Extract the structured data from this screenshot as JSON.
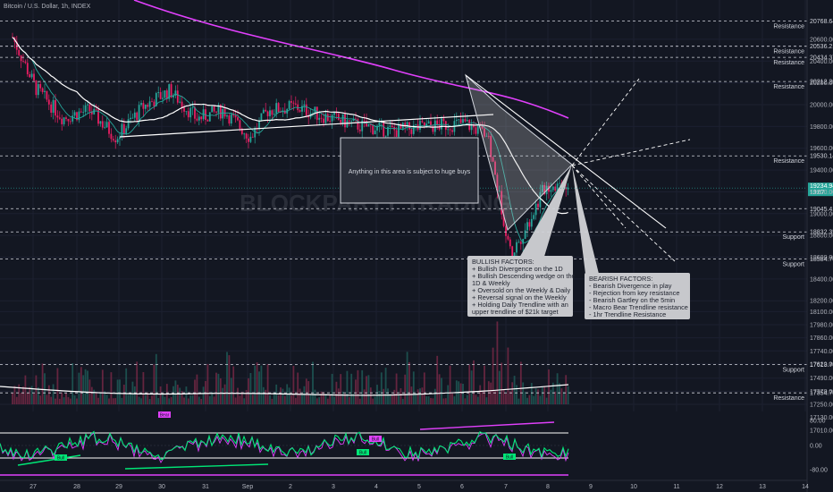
{
  "symbol": {
    "title": "Bitcoin / U.S. Dollar, 1h, INDEX"
  },
  "watermark": "BLOCKPARTY TRADING",
  "colors": {
    "background": "#131722",
    "up": "#26a69a",
    "down": "#e91e63",
    "ma_long": "#e040fb",
    "ma_mid": "#ffffff",
    "ma_fast": "#26a69a",
    "note_fill": "#c7c8cc",
    "osc_line": "#00e676",
    "osc_signal": "#e040fb"
  },
  "chart_data": {
    "type": "candlestick",
    "title": "Bitcoin / U.S. Dollar, 1h, INDEX",
    "x_ticks": [
      "27",
      "28",
      "29",
      "30",
      "31",
      "Sep",
      "2",
      "3",
      "4",
      "5",
      "6",
      "7",
      "8",
      "9",
      "10",
      "11",
      "12",
      "13",
      "14"
    ],
    "price_ticks": [
      20600,
      20400,
      20200,
      20000,
      19800,
      19600,
      19400,
      19200,
      19000,
      18800,
      18600,
      18400,
      18200,
      18100,
      17980,
      17860,
      17740,
      17620,
      17490,
      17370,
      17250,
      17130,
      17010
    ],
    "price_tick_labels": [
      "20600.00",
      "20400.00",
      "20200.00",
      "20000.00",
      "19800.00",
      "19600.00",
      "19400.00",
      "19200.00",
      "19000.00",
      "18800.00",
      "18600.00",
      "18400.00",
      "18200.00",
      "18100.00",
      "17980.00",
      "17860.00",
      "17740.00",
      "17620.00",
      "17490.00",
      "17370.00",
      "17250.00",
      "17130.00",
      "17010.00"
    ],
    "current_price": "19234.94",
    "current_time": "13:07",
    "levels": [
      {
        "value": 20768.64,
        "label": "20768.64",
        "name": "Resistance"
      },
      {
        "value": 20536.21,
        "label": "20536.21",
        "name": "Resistance"
      },
      {
        "value": 20434.37,
        "label": "20434.37",
        "name": "Resistance"
      },
      {
        "value": 20212.2,
        "label": "20212.20",
        "name": "Resistance"
      },
      {
        "value": 19530.14,
        "label": "19530.14",
        "name": "Resistance"
      },
      {
        "value": 19045.41,
        "label": "19045.41",
        "name": ""
      },
      {
        "value": 18832.35,
        "label": "18832.35",
        "name": "Support"
      },
      {
        "value": 18584.7,
        "label": "18584.70",
        "name": "Support"
      },
      {
        "value": 17613.7,
        "label": "17613.70",
        "name": "Support"
      },
      {
        "value": 17354.7,
        "label": "17354.70",
        "name": "Resistance"
      }
    ],
    "oscillator_ticks": [
      "80.00",
      "0.00",
      "-80.00"
    ],
    "oscillator_labels": [
      "Bull",
      "Bull",
      "Bull",
      "Bull",
      "Bear"
    ],
    "notes": {
      "box": "Anything in this area is subject to huge buys",
      "bullish": [
        "BULLISH FACTORS:",
        "+ Bullish Divergence on the 1D",
        "+ Bullish Descending wedge on the",
        "1D & Weekly",
        "+ Oversold on the Weekly & Daily",
        "+ Reversal signal on the Weekly",
        "+ Holding Daily Trendline with an",
        "upper trendline of $21k target"
      ],
      "bearish": [
        "BEARISH FACTORS:",
        "- Bearish Divergence in play",
        "- Rejection from key resistance",
        "- Bearish Gartley on the 5min",
        "- Macro Bear Trendline resistance",
        "- 1hr Trendline Resistance"
      ]
    }
  }
}
